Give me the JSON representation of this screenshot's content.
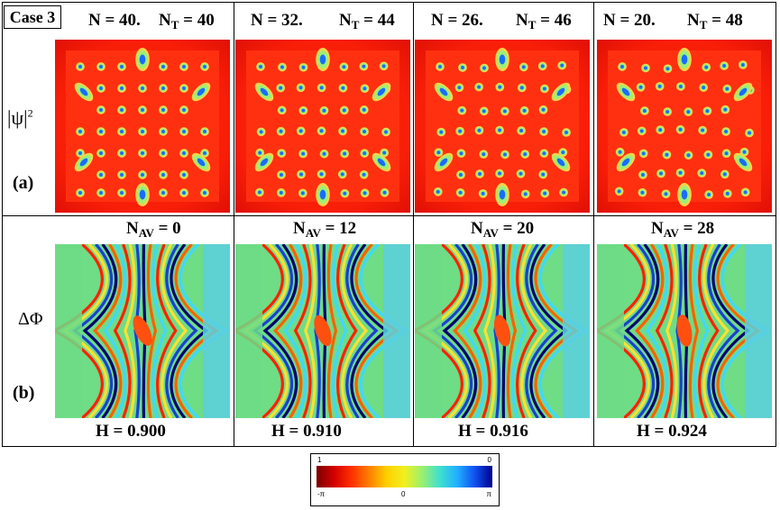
{
  "case_label": "Case 3",
  "row_labels": {
    "a": "(a)",
    "b": "(b)",
    "psi": "|ψ|",
    "psi_sup": "2",
    "phi": "ΔΦ"
  },
  "columns": [
    {
      "n": "N = 40.",
      "nt_main": "N",
      "nt_sub": "T",
      "nt_val": " = 40",
      "nav_main": "N",
      "nav_sub": "AV",
      "nav_val": " = 0",
      "h": "H = 0.900"
    },
    {
      "n": "N = 32.",
      "nt_main": "N",
      "nt_sub": "T",
      "nt_val": " = 44",
      "nav_main": "N",
      "nav_sub": "AV",
      "nav_val": " = 12",
      "h": "H = 0.910"
    },
    {
      "n": "N = 26.",
      "nt_main": "N",
      "nt_sub": "T",
      "nt_val": " = 46",
      "nav_main": "N",
      "nav_sub": "AV",
      "nav_val": " = 20",
      "h": "H = 0.916"
    },
    {
      "n": "N = 20.",
      "nt_main": "N",
      "nt_sub": "T",
      "nt_val": " = 48",
      "nav_main": "N",
      "nav_sub": "AV",
      "nav_val": " = 28",
      "h": "H = 0.924"
    }
  ],
  "colorbar": {
    "top_left": "1",
    "top_right": "0",
    "bottom_left": "-π",
    "bottom_mid": "0",
    "bottom_right": "π"
  }
}
